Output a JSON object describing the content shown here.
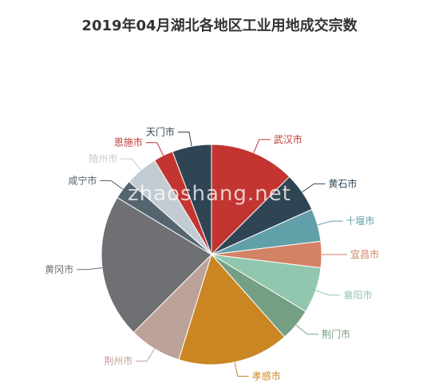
{
  "chart_data": {
    "type": "pie",
    "title": "2019年04月湖北各地区工业用地成交宗数",
    "slices": [
      {
        "label": "武汉市",
        "value": 13,
        "color": "#c23531"
      },
      {
        "label": "黄石市",
        "value": 6,
        "color": "#2f4554"
      },
      {
        "label": "十堰市",
        "value": 5,
        "color": "#61a0a8"
      },
      {
        "label": "宜昌市",
        "value": 4,
        "color": "#d48265"
      },
      {
        "label": "襄阳市",
        "value": 7,
        "color": "#91c7ae"
      },
      {
        "label": "荆门市",
        "value": 5,
        "color": "#749f83"
      },
      {
        "label": "孝感市",
        "value": 17,
        "color": "#ca8622"
      },
      {
        "label": "荆州市",
        "value": 8,
        "color": "#bda29a"
      },
      {
        "label": "黄冈市",
        "value": 22,
        "color": "#6e7074"
      },
      {
        "label": "咸宁市",
        "value": 3,
        "color": "#546570"
      },
      {
        "label": "随州市",
        "value": 5,
        "color": "#c4ccd3"
      },
      {
        "label": "恩施市",
        "value": 3,
        "color": "#c23531"
      },
      {
        "label": "天门市",
        "value": 6,
        "color": "#2f4554"
      }
    ]
  },
  "watermark": "zhaoshang.net"
}
